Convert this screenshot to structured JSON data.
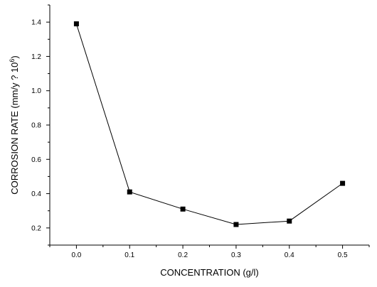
{
  "chart_data": {
    "type": "line",
    "xlabel": "CONCENTRATION (g/l)",
    "ylabel": "CORROSION RATE (mm/y ? 10",
    "ylabel_superscript": "6",
    "ylabel_close": ")",
    "xlim": [
      -0.05,
      0.55
    ],
    "ylim": [
      0.1,
      1.5
    ],
    "x_ticks": [
      0.0,
      0.1,
      0.2,
      0.3,
      0.4,
      0.5
    ],
    "x_tick_labels": [
      "0.0",
      "0.1",
      "0.2",
      "0.3",
      "0.4",
      "0.5"
    ],
    "y_ticks": [
      0.2,
      0.4,
      0.6,
      0.8,
      1.0,
      1.2,
      1.4
    ],
    "y_tick_labels": [
      "0.2",
      "0.4",
      "0.6",
      "0.8",
      "1.0",
      "1.2",
      "1.4"
    ],
    "grid": false,
    "legend": "none",
    "series": [
      {
        "x": [
          0.0,
          0.1,
          0.2,
          0.3,
          0.4,
          0.5
        ],
        "y": [
          1.39,
          0.41,
          0.31,
          0.22,
          0.24,
          0.46
        ],
        "marker": "square",
        "color": "#000000"
      }
    ]
  }
}
